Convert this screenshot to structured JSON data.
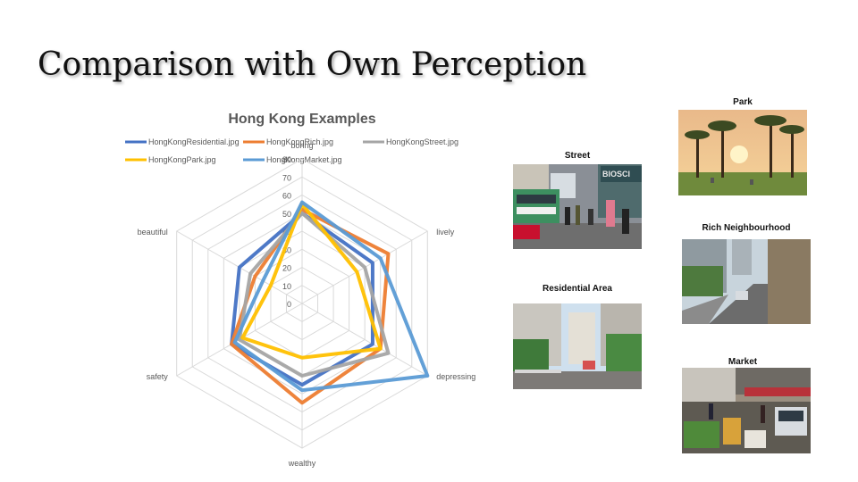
{
  "slide": {
    "title": "Comparison with Own Perception"
  },
  "chart_data": {
    "type": "radar",
    "title": "Hong Kong Examples",
    "axes": [
      "boring",
      "lively",
      "depressing",
      "wealthy",
      "safety",
      "beautiful"
    ],
    "scale_ticks": [
      0,
      10,
      20,
      30,
      40,
      50,
      60,
      70,
      80
    ],
    "rlim": [
      0,
      80
    ],
    "grid": true,
    "legend": "top",
    "series": [
      {
        "name": "HongKongResidential.jpg",
        "color": "#4472C4",
        "values": [
          50,
          45,
          45,
          45,
          45,
          40
        ]
      },
      {
        "name": "HongKongRich.jpg",
        "color": "#ED7D31",
        "values": [
          52,
          55,
          50,
          55,
          45,
          30
        ]
      },
      {
        "name": "HongKongStreet.jpg",
        "color": "#A5A5A5",
        "values": [
          50,
          40,
          55,
          40,
          40,
          33
        ]
      },
      {
        "name": "HongKongPark.jpg",
        "color": "#FFC000",
        "values": [
          55,
          35,
          50,
          30,
          38,
          20
        ]
      },
      {
        "name": "HongKongMarket.jpg",
        "color": "#5B9BD5",
        "values": [
          56,
          50,
          80,
          48,
          43,
          25
        ]
      }
    ]
  },
  "photos": {
    "street": {
      "caption": "Street",
      "sign_text": "BIOSCI"
    },
    "residential": {
      "caption": "Residential Area"
    },
    "park": {
      "caption": "Park"
    },
    "rich": {
      "caption": "Rich Neighbourhood"
    },
    "market": {
      "caption": "Market"
    }
  }
}
